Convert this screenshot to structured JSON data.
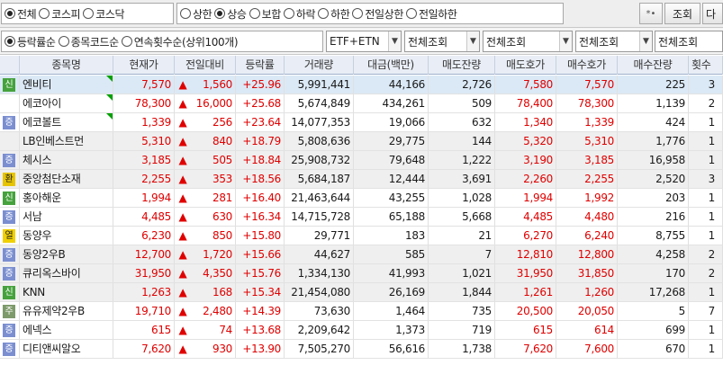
{
  "filters": {
    "market": [
      "전체",
      "코스피",
      "코스닥"
    ],
    "market_selected": 0,
    "status": [
      "상한",
      "상승",
      "보합",
      "하락",
      "하한",
      "전일상한",
      "전일하한"
    ],
    "status_selected": 1,
    "sort": [
      "등락률순",
      "종목코드순",
      "연속횟수순(상위100개)"
    ],
    "sort_selected": 0
  },
  "toolbar": {
    "settings_glyph": "*•",
    "search_label": "조회",
    "next_label": "다"
  },
  "combos": [
    "ETF+ETN",
    "전체조회",
    "전체조회",
    "전체조회",
    "전체조회"
  ],
  "columns": [
    "종목명",
    "현재가",
    "전일대비",
    "등락률",
    "거래량",
    "대금(백만)",
    "매도잔량",
    "매도호가",
    "매수호가",
    "매수잔량",
    "횟수"
  ],
  "rows": [
    {
      "badge": "신",
      "badge_type": "sin",
      "name": "엔비티",
      "price": "7,570",
      "change": "1,560",
      "rate": "+25.96",
      "volume": "5,991,441",
      "amount": "44,166",
      "ask_qty": "2,726",
      "ask": "7,580",
      "bid": "7,570",
      "bid_qty": "225",
      "count": "3"
    },
    {
      "badge": "",
      "badge_type": "",
      "name": "에코아이",
      "price": "78,300",
      "change": "16,000",
      "rate": "+25.68",
      "volume": "5,674,849",
      "amount": "434,261",
      "ask_qty": "509",
      "ask": "78,400",
      "bid": "78,300",
      "bid_qty": "1,139",
      "count": "2"
    },
    {
      "badge": "증",
      "badge_type": "jeung",
      "name": "에코볼트",
      "price": "1,339",
      "change": "256",
      "rate": "+23.64",
      "volume": "14,077,353",
      "amount": "19,066",
      "ask_qty": "632",
      "ask": "1,340",
      "bid": "1,339",
      "bid_qty": "424",
      "count": "1"
    },
    {
      "badge": "",
      "badge_type": "",
      "name": "LB인베스트먼",
      "price": "5,310",
      "change": "840",
      "rate": "+18.79",
      "volume": "5,808,636",
      "amount": "29,775",
      "ask_qty": "144",
      "ask": "5,320",
      "bid": "5,310",
      "bid_qty": "1,776",
      "count": "1"
    },
    {
      "badge": "증",
      "badge_type": "jeung",
      "name": "체시스",
      "price": "3,185",
      "change": "505",
      "rate": "+18.84",
      "volume": "25,908,732",
      "amount": "79,648",
      "ask_qty": "1,222",
      "ask": "3,190",
      "bid": "3,185",
      "bid_qty": "16,958",
      "count": "1"
    },
    {
      "badge": "환",
      "badge_type": "hwan",
      "name": "중앙첨단소재",
      "price": "2,255",
      "change": "353",
      "rate": "+18.56",
      "volume": "5,684,187",
      "amount": "12,444",
      "ask_qty": "3,691",
      "ask": "2,260",
      "bid": "2,255",
      "bid_qty": "2,520",
      "count": "3"
    },
    {
      "badge": "신",
      "badge_type": "sin",
      "name": "홍아해운",
      "price": "1,994",
      "change": "281",
      "rate": "+16.40",
      "volume": "21,463,644",
      "amount": "43,255",
      "ask_qty": "1,028",
      "ask": "1,994",
      "bid": "1,992",
      "bid_qty": "203",
      "count": "1"
    },
    {
      "badge": "증",
      "badge_type": "jeung",
      "name": "서남",
      "price": "4,485",
      "change": "630",
      "rate": "+16.34",
      "volume": "14,715,728",
      "amount": "65,188",
      "ask_qty": "5,668",
      "ask": "4,485",
      "bid": "4,480",
      "bid_qty": "216",
      "count": "1"
    },
    {
      "badge": "열",
      "badge_type": "yeol",
      "name": "동양우",
      "price": "6,230",
      "change": "850",
      "rate": "+15.80",
      "volume": "29,771",
      "amount": "183",
      "ask_qty": "21",
      "ask": "6,270",
      "bid": "6,240",
      "bid_qty": "8,755",
      "count": "1"
    },
    {
      "badge": "증",
      "badge_type": "jeung",
      "name": "동양2우B",
      "price": "12,700",
      "change": "1,720",
      "rate": "+15.66",
      "volume": "44,627",
      "amount": "585",
      "ask_qty": "7",
      "ask": "12,810",
      "bid": "12,800",
      "bid_qty": "4,258",
      "count": "2"
    },
    {
      "badge": "증",
      "badge_type": "jeung",
      "name": "큐리옥스바이",
      "price": "31,950",
      "change": "4,350",
      "rate": "+15.76",
      "volume": "1,334,130",
      "amount": "41,993",
      "ask_qty": "1,021",
      "ask": "31,950",
      "bid": "31,850",
      "bid_qty": "170",
      "count": "2"
    },
    {
      "badge": "신",
      "badge_type": "sin",
      "name": "KNN",
      "price": "1,263",
      "change": "168",
      "rate": "+15.34",
      "volume": "21,454,080",
      "amount": "26,169",
      "ask_qty": "1,844",
      "ask": "1,261",
      "bid": "1,260",
      "bid_qty": "17,268",
      "count": "1"
    },
    {
      "badge": "주",
      "badge_type": "ju",
      "name": "유유제약2우B",
      "price": "19,710",
      "change": "2,480",
      "rate": "+14.39",
      "volume": "73,630",
      "amount": "1,464",
      "ask_qty": "735",
      "ask": "20,500",
      "bid": "20,050",
      "bid_qty": "5",
      "count": "7"
    },
    {
      "badge": "증",
      "badge_type": "jeung",
      "name": "에넥스",
      "price": "615",
      "change": "74",
      "rate": "+13.68",
      "volume": "2,209,642",
      "amount": "1,373",
      "ask_qty": "719",
      "ask": "615",
      "bid": "614",
      "bid_qty": "699",
      "count": "1"
    },
    {
      "badge": "증",
      "badge_type": "jeung",
      "name": "디티앤씨알오",
      "price": "7,620",
      "change": "930",
      "rate": "+13.90",
      "volume": "7,505,270",
      "amount": "56,616",
      "ask_qty": "1,738",
      "ask": "7,620",
      "bid": "7,600",
      "bid_qty": "670",
      "count": "1"
    }
  ],
  "colors": {
    "up": "#e00000",
    "selected_row": "#dbe9f6",
    "alt_row": "#efefef",
    "header": "#e9eef6"
  }
}
